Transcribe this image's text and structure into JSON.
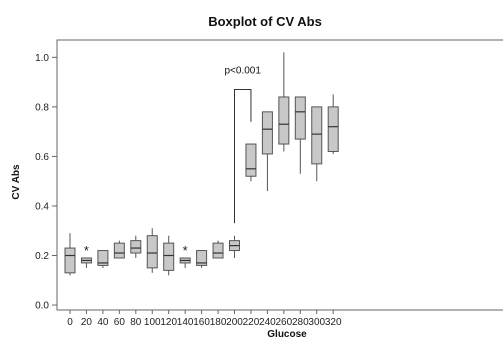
{
  "chart_data": {
    "type": "boxplot",
    "title": "Boxplot of CV Abs",
    "xlabel": "Glucose",
    "ylabel": "CV Abs",
    "ylim": [
      -0.02,
      1.07
    ],
    "yticks": [
      "0.0",
      "0.2",
      "0.4",
      "0.6",
      "0.8",
      "1.0"
    ],
    "categories": [
      "0",
      "20",
      "40",
      "60",
      "80",
      "100",
      "120",
      "140",
      "160",
      "180",
      "200",
      "220",
      "240",
      "260",
      "280",
      "300",
      "320"
    ],
    "boxes": [
      {
        "x": "0",
        "min": 0.12,
        "q1": 0.13,
        "median": 0.2,
        "q3": 0.23,
        "max": 0.29
      },
      {
        "x": "20",
        "min": 0.15,
        "q1": 0.17,
        "median": 0.18,
        "q3": 0.19,
        "max": 0.19,
        "outliers": [
          0.23
        ]
      },
      {
        "x": "40",
        "min": 0.15,
        "q1": 0.16,
        "median": 0.17,
        "q3": 0.22,
        "max": 0.22
      },
      {
        "x": "60",
        "min": 0.19,
        "q1": 0.19,
        "median": 0.21,
        "q3": 0.25,
        "max": 0.26
      },
      {
        "x": "80",
        "min": 0.19,
        "q1": 0.21,
        "median": 0.23,
        "q3": 0.26,
        "max": 0.28
      },
      {
        "x": "100",
        "min": 0.13,
        "q1": 0.15,
        "median": 0.21,
        "q3": 0.28,
        "max": 0.31
      },
      {
        "x": "120",
        "min": 0.12,
        "q1": 0.14,
        "median": 0.2,
        "q3": 0.25,
        "max": 0.28
      },
      {
        "x": "140",
        "min": 0.15,
        "q1": 0.17,
        "median": 0.18,
        "q3": 0.19,
        "max": 0.19,
        "outliers": [
          0.23
        ]
      },
      {
        "x": "160",
        "min": 0.15,
        "q1": 0.16,
        "median": 0.17,
        "q3": 0.22,
        "max": 0.22
      },
      {
        "x": "180",
        "min": 0.19,
        "q1": 0.19,
        "median": 0.21,
        "q3": 0.25,
        "max": 0.26
      },
      {
        "x": "200",
        "min": 0.19,
        "q1": 0.22,
        "median": 0.24,
        "q3": 0.26,
        "max": 0.28
      },
      {
        "x": "220",
        "min": 0.5,
        "q1": 0.52,
        "median": 0.55,
        "q3": 0.65,
        "max": 0.65
      },
      {
        "x": "240",
        "min": 0.46,
        "q1": 0.61,
        "median": 0.71,
        "q3": 0.78,
        "max": 0.78
      },
      {
        "x": "260",
        "min": 0.62,
        "q1": 0.65,
        "median": 0.73,
        "q3": 0.84,
        "max": 1.02
      },
      {
        "x": "280",
        "min": 0.53,
        "q1": 0.67,
        "median": 0.78,
        "q3": 0.84,
        "max": 0.84
      },
      {
        "x": "300",
        "min": 0.5,
        "q1": 0.57,
        "median": 0.69,
        "q3": 0.8,
        "max": 0.8
      },
      {
        "x": "320",
        "min": 0.61,
        "q1": 0.62,
        "median": 0.72,
        "q3": 0.8,
        "max": 0.85
      }
    ],
    "annotation": {
      "text": "p<0.001",
      "from": "200",
      "to": "220",
      "y_top": 0.87,
      "y_left_end": 0.33,
      "y_right_end": 0.74
    },
    "colors": {
      "box_fill": "#c8c8c8",
      "stroke": "#555555",
      "frame": "#666666",
      "text": "#111111"
    }
  }
}
